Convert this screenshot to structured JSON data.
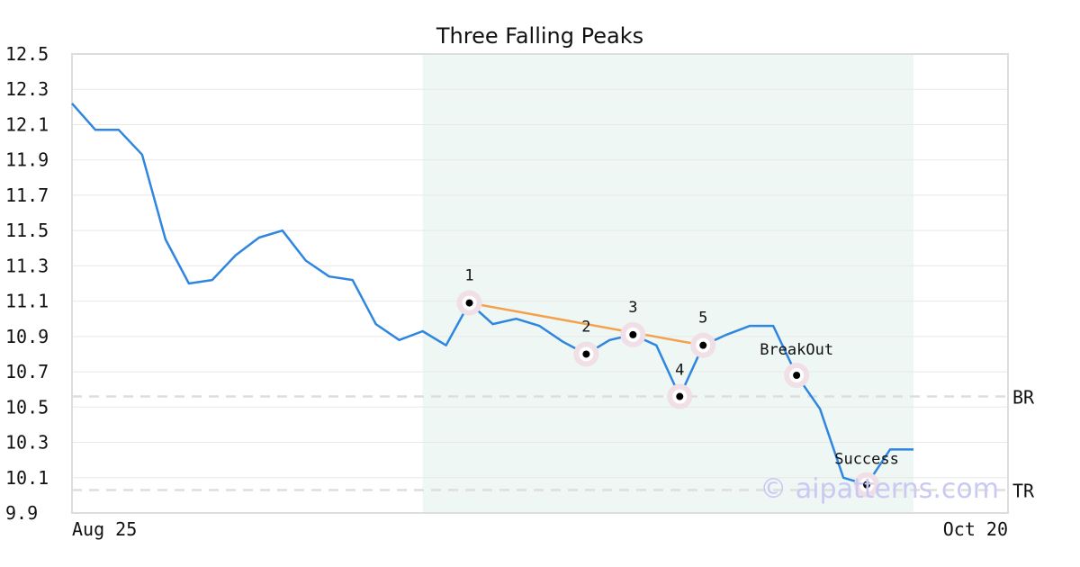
{
  "chart_data": {
    "type": "line",
    "title": "Three Falling Peaks",
    "xlabel": "",
    "ylabel": "",
    "ylim": [
      9.9,
      12.5
    ],
    "y_ticks": [
      "12.5",
      "12.3",
      "12.1",
      "11.9",
      "11.7",
      "11.5",
      "11.3",
      "11.1",
      "10.9",
      "10.7",
      "10.5",
      "10.3",
      "10.1",
      "9.9"
    ],
    "x_tick_labels": [
      "Aug 25",
      "Oct 20"
    ],
    "grid": true,
    "series": [
      {
        "color": "#2f86e0",
        "values": [
          12.22,
          12.07,
          12.07,
          11.93,
          11.45,
          11.2,
          11.22,
          11.36,
          11.46,
          11.5,
          11.33,
          11.24,
          11.22,
          10.97,
          10.88,
          10.93,
          10.85,
          11.09,
          10.97,
          11.0,
          10.96,
          10.87,
          10.8,
          10.88,
          10.91,
          10.85,
          10.56,
          10.85,
          10.91,
          10.96,
          10.96,
          10.68,
          10.49,
          10.1,
          10.06,
          10.26,
          10.26
        ]
      }
    ],
    "pattern_region": {
      "start_index": 15,
      "end_index": 36,
      "color": "#eef7f3"
    },
    "trendline": {
      "color": "#f5a04a",
      "from_index": 17,
      "to_index": 27
    },
    "points": [
      {
        "label": "1",
        "index": 17,
        "value": 11.09
      },
      {
        "label": "2",
        "index": 22,
        "value": 10.8
      },
      {
        "label": "3",
        "index": 24,
        "value": 10.91
      },
      {
        "label": "4",
        "index": 26,
        "value": 10.56
      },
      {
        "label": "5",
        "index": 27,
        "value": 10.85
      },
      {
        "label": "BreakOut",
        "index": 31,
        "value": 10.68
      },
      {
        "label": "Success",
        "index": 34,
        "value": 10.06
      }
    ],
    "reference_lines": [
      {
        "label": "BR",
        "value": 10.56
      },
      {
        "label": "TR",
        "value": 10.03
      }
    ],
    "watermark": "© aipatterns.com"
  }
}
